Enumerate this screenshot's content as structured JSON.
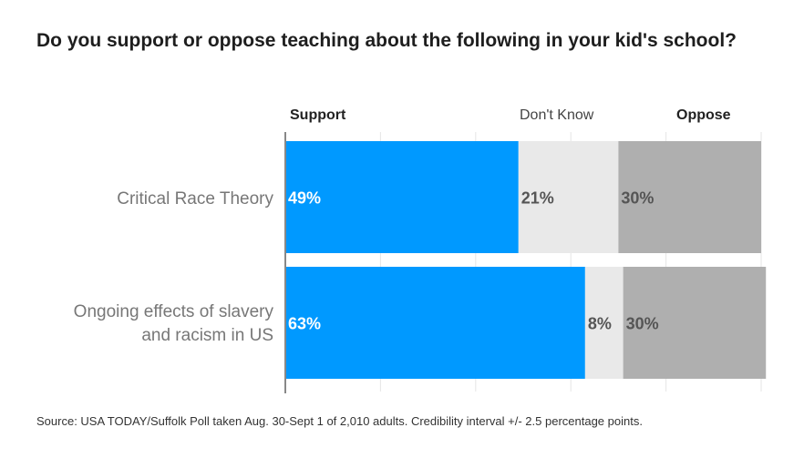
{
  "title": "Do you support or oppose teaching about the following in your kid's school?",
  "legend": {
    "support": "Support",
    "dont_know": "Don't Know",
    "oppose": "Oppose"
  },
  "source": "Source: USA TODAY/Suffolk Poll taken Aug. 30-Sept 1 of 2,010 adults. Credibility interval +/- 2.5 percentage points.",
  "colors": {
    "support": "#0099FF",
    "dont_know": "#E9E9E9",
    "oppose": "#AFAFAF",
    "grid": "#E5E5E5",
    "axis": "#888888"
  },
  "chart_data": {
    "type": "bar",
    "orientation": "horizontal",
    "stacked": true,
    "title": "Do you support or oppose teaching about the following in your kid's school?",
    "categories": [
      "Critical Race Theory",
      "Ongoing effects of slavery and racism in US"
    ],
    "category_lines": [
      [
        "Critical Race Theory"
      ],
      [
        "Ongoing effects of slavery",
        "and racism in US"
      ]
    ],
    "series": [
      {
        "name": "Support",
        "values": [
          49,
          63
        ],
        "labels": [
          "49%",
          "63%"
        ]
      },
      {
        "name": "Don't Know",
        "values": [
          21,
          8
        ],
        "labels": [
          "21%",
          "8%"
        ]
      },
      {
        "name": "Oppose",
        "values": [
          30,
          30
        ],
        "labels": [
          "30%",
          "30%"
        ]
      }
    ],
    "xlim": [
      0,
      100
    ],
    "unit": "%",
    "grid": true
  }
}
